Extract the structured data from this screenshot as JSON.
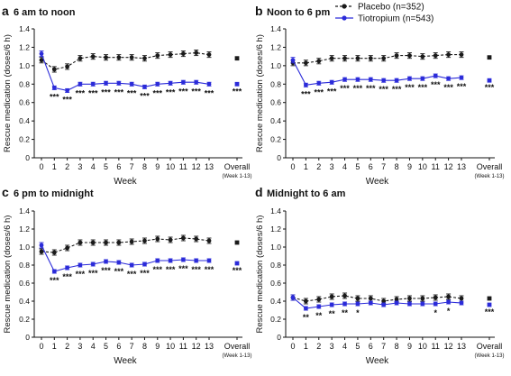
{
  "legend": {
    "placebo_label": "Placebo (n=352)",
    "tiotropium_label": "Tiotropium (n=543)"
  },
  "colors": {
    "placebo": "#1a1a1a",
    "tiotropium": "#2b2bd9"
  },
  "chart_data": [
    {
      "type": "line",
      "letter": "a",
      "title": "6 am to noon",
      "xlabel": "Week",
      "ylabel": "Rescue medication (doses/6 h)",
      "categories": [
        "0",
        "1",
        "2",
        "3",
        "4",
        "5",
        "6",
        "7",
        "8",
        "9",
        "10",
        "11",
        "12",
        "13",
        "Overall"
      ],
      "overall_sublabel": "(Week 1-13)",
      "ylim": [
        0,
        1.4
      ],
      "yticks": [
        "0",
        "0.2",
        "0.4",
        "0.6",
        "0.8",
        "1.0",
        "1.2",
        "1.4"
      ],
      "series": [
        {
          "name": "Placebo (n=352)",
          "values": [
            1.06,
            0.96,
            0.99,
            1.08,
            1.1,
            1.09,
            1.09,
            1.09,
            1.08,
            1.11,
            1.12,
            1.13,
            1.14,
            1.12,
            1.08
          ],
          "err": [
            0.03,
            0.03,
            0.03,
            0.03,
            0.03,
            0.03,
            0.03,
            0.03,
            0.03,
            0.03,
            0.03,
            0.03,
            0.03,
            0.03,
            0
          ]
        },
        {
          "name": "Tiotropium (n=543)",
          "values": [
            1.13,
            0.76,
            0.73,
            0.8,
            0.8,
            0.81,
            0.81,
            0.8,
            0.77,
            0.8,
            0.81,
            0.82,
            0.82,
            0.8,
            0.8
          ],
          "err": [
            0.03,
            0.02,
            0.02,
            0.02,
            0.02,
            0.02,
            0.02,
            0.02,
            0.02,
            0.02,
            0.02,
            0.02,
            0.02,
            0.02,
            0
          ]
        }
      ],
      "significance": [
        "",
        "***",
        "***",
        "***",
        "***",
        "***",
        "***",
        "***",
        "***",
        "***",
        "***",
        "***",
        "***",
        "***",
        "***"
      ]
    },
    {
      "type": "line",
      "letter": "b",
      "title": "Noon to 6 pm",
      "xlabel": "Week",
      "ylabel": "Rescue medication (doses/6 h)",
      "categories": [
        "0",
        "1",
        "2",
        "3",
        "4",
        "5",
        "6",
        "7",
        "8",
        "9",
        "10",
        "11",
        "12",
        "13",
        "Overall"
      ],
      "overall_sublabel": "(Week 1-13)",
      "ylim": [
        0,
        1.4
      ],
      "yticks": [
        "0",
        "0.2",
        "0.4",
        "0.6",
        "0.8",
        "1.0",
        "1.2",
        "1.4"
      ],
      "series": [
        {
          "name": "Placebo (n=352)",
          "values": [
            1.03,
            1.03,
            1.05,
            1.08,
            1.08,
            1.08,
            1.08,
            1.08,
            1.11,
            1.11,
            1.1,
            1.11,
            1.12,
            1.12,
            1.09
          ],
          "err": [
            0.03,
            0.03,
            0.03,
            0.03,
            0.03,
            0.03,
            0.03,
            0.03,
            0.03,
            0.03,
            0.03,
            0.03,
            0.03,
            0.03,
            0
          ]
        },
        {
          "name": "Tiotropium (n=543)",
          "values": [
            1.06,
            0.79,
            0.81,
            0.82,
            0.85,
            0.85,
            0.85,
            0.84,
            0.84,
            0.86,
            0.86,
            0.89,
            0.86,
            0.87,
            0.84
          ],
          "err": [
            0.03,
            0.02,
            0.02,
            0.02,
            0.02,
            0.02,
            0.02,
            0.02,
            0.02,
            0.02,
            0.02,
            0.02,
            0.02,
            0.02,
            0
          ]
        }
      ],
      "significance": [
        "",
        "***",
        "***",
        "***",
        "***",
        "***",
        "***",
        "***",
        "***",
        "***",
        "***",
        "***",
        "***",
        "***",
        "***"
      ]
    },
    {
      "type": "line",
      "letter": "c",
      "title": "6 pm to midnight",
      "xlabel": "Week",
      "ylabel": "Rescue medication (doses/6 h)",
      "categories": [
        "0",
        "1",
        "2",
        "3",
        "4",
        "5",
        "6",
        "7",
        "8",
        "9",
        "10",
        "11",
        "12",
        "13",
        "Overall"
      ],
      "overall_sublabel": "(Week 1-13)",
      "ylim": [
        0,
        1.4
      ],
      "yticks": [
        "0",
        "0.2",
        "0.4",
        "0.6",
        "0.8",
        "1.0",
        "1.2",
        "1.4"
      ],
      "series": [
        {
          "name": "Placebo (n=352)",
          "values": [
            0.95,
            0.94,
            0.99,
            1.05,
            1.05,
            1.05,
            1.05,
            1.06,
            1.07,
            1.09,
            1.08,
            1.1,
            1.09,
            1.07,
            1.05
          ],
          "err": [
            0.03,
            0.03,
            0.03,
            0.03,
            0.03,
            0.03,
            0.03,
            0.03,
            0.03,
            0.03,
            0.03,
            0.03,
            0.03,
            0.03,
            0
          ]
        },
        {
          "name": "Tiotropium (n=543)",
          "values": [
            1.02,
            0.73,
            0.77,
            0.8,
            0.81,
            0.84,
            0.83,
            0.8,
            0.81,
            0.85,
            0.85,
            0.86,
            0.85,
            0.85,
            0.82
          ],
          "err": [
            0.03,
            0.02,
            0.02,
            0.02,
            0.02,
            0.02,
            0.02,
            0.02,
            0.02,
            0.02,
            0.02,
            0.02,
            0.02,
            0.02,
            0
          ]
        }
      ],
      "significance": [
        "",
        "***",
        "***",
        "***",
        "***",
        "***",
        "***",
        "***",
        "***",
        "***",
        "***",
        "***",
        "***",
        "***",
        "***"
      ]
    },
    {
      "type": "line",
      "letter": "d",
      "title": "Midnight to 6 am",
      "xlabel": "Week",
      "ylabel": "Rescue medication (doses/6 h)",
      "categories": [
        "0",
        "1",
        "2",
        "3",
        "4",
        "5",
        "6",
        "7",
        "8",
        "9",
        "10",
        "11",
        "12",
        "13",
        "Overall"
      ],
      "overall_sublabel": "(Week 1-13)",
      "ylim": [
        0,
        1.4
      ],
      "yticks": [
        "0",
        "0.2",
        "0.4",
        "0.6",
        "0.8",
        "1.0",
        "1.2",
        "1.4"
      ],
      "series": [
        {
          "name": "Placebo (n=352)",
          "values": [
            0.44,
            0.4,
            0.42,
            0.45,
            0.46,
            0.43,
            0.43,
            0.4,
            0.42,
            0.43,
            0.43,
            0.44,
            0.45,
            0.43,
            0.43
          ],
          "err": [
            0.03,
            0.03,
            0.03,
            0.03,
            0.03,
            0.03,
            0.03,
            0.03,
            0.03,
            0.03,
            0.03,
            0.03,
            0.03,
            0.03,
            0
          ]
        },
        {
          "name": "Tiotropium (n=543)",
          "values": [
            0.44,
            0.32,
            0.34,
            0.36,
            0.37,
            0.37,
            0.38,
            0.36,
            0.38,
            0.37,
            0.37,
            0.37,
            0.39,
            0.38,
            0.36
          ],
          "err": [
            0.03,
            0.02,
            0.02,
            0.02,
            0.02,
            0.02,
            0.02,
            0.02,
            0.02,
            0.02,
            0.02,
            0.02,
            0.02,
            0.02,
            0
          ]
        }
      ],
      "significance": [
        "",
        "**",
        "**",
        "**",
        "**",
        "*",
        "",
        "",
        "",
        "",
        "",
        "*",
        "*",
        "",
        "***"
      ]
    }
  ]
}
